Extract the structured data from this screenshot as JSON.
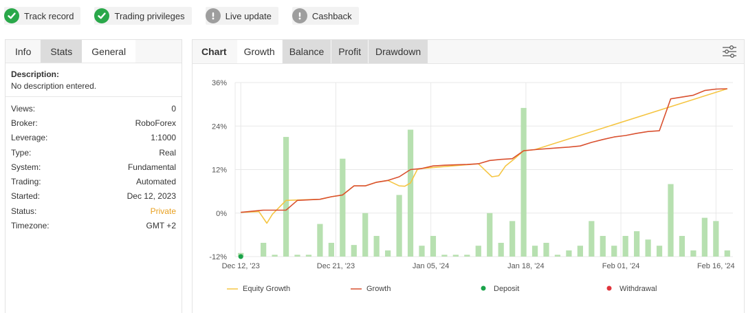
{
  "badges": [
    {
      "label": "Track record",
      "status": "ok"
    },
    {
      "label": "Trading privileges",
      "status": "ok"
    },
    {
      "label": "Live update",
      "status": "warn"
    },
    {
      "label": "Cashback",
      "status": "warn"
    }
  ],
  "left_tabs": [
    "Info",
    "Stats",
    "General"
  ],
  "description": {
    "heading": "Description:",
    "text": "No description entered."
  },
  "info_rows": [
    {
      "label": "Views:",
      "value": "0"
    },
    {
      "label": "Broker:",
      "value": "RoboForex"
    },
    {
      "label": "Leverage:",
      "value": "1:1000"
    },
    {
      "label": "Type:",
      "value": "Real"
    },
    {
      "label": "System:",
      "value": "Fundamental"
    },
    {
      "label": "Trading:",
      "value": "Automated"
    },
    {
      "label": "Started:",
      "value": "Dec 12, 2023"
    },
    {
      "label": "Status:",
      "value": "Private"
    },
    {
      "label": "Timezone:",
      "value": "GMT +2"
    }
  ],
  "right_tabs": {
    "title": "Chart",
    "items": [
      "Growth",
      "Balance",
      "Profit",
      "Drawdown"
    ]
  },
  "colors": {
    "equity": "#f5c542",
    "growth": "#d9502f",
    "deposit": "#1aa34a",
    "withdrawal": "#e0343c",
    "bar": "#b7e0b0",
    "ok": "#2aa84a",
    "private": "#e8a020"
  },
  "chart_data": {
    "type": "bar+line",
    "y_ticks": [
      "36%",
      "24%",
      "12%",
      "0%",
      "-12%"
    ],
    "ylim": [
      -12,
      36
    ],
    "x_ticks": [
      "Dec 12, '23",
      "Dec 21, '23",
      "Jan 05, '24",
      "Jan 18, '24",
      "Feb 01, '24",
      "Feb 16, '24"
    ],
    "bars": [
      -11,
      -12,
      -8.2,
      -11.5,
      21,
      -11.5,
      -11.5,
      -3,
      -8.2,
      15,
      -8.8,
      0,
      -6.3,
      -10.3,
      5,
      23,
      -9,
      -6.3,
      -11.5,
      -11.5,
      -11.5,
      -9,
      0,
      -8.2,
      -2.2,
      29,
      -9,
      -8.2,
      -11.5,
      -10.3,
      -9,
      -2.2,
      -6.3,
      -9,
      -6.3,
      -5,
      -7.3,
      -9,
      8,
      -6.3,
      -10.3,
      -1.3,
      -2.2,
      -10.3
    ],
    "growth": [
      [
        0,
        0.2
      ],
      [
        2,
        0.8
      ],
      [
        4,
        0.8
      ],
      [
        5,
        3.5
      ],
      [
        7,
        3.8
      ],
      [
        8,
        4.5
      ],
      [
        9,
        5
      ],
      [
        10,
        7.5
      ],
      [
        11,
        7.5
      ],
      [
        12,
        8.5
      ],
      [
        13,
        9
      ],
      [
        14,
        10
      ],
      [
        15,
        12
      ],
      [
        16,
        12.3
      ],
      [
        17,
        13
      ],
      [
        18,
        13.2
      ],
      [
        19,
        13.3
      ],
      [
        20,
        13.4
      ],
      [
        21,
        13.6
      ],
      [
        22,
        14.5
      ],
      [
        23,
        14.8
      ],
      [
        24,
        15
      ],
      [
        25,
        17.2
      ],
      [
        26,
        17.5
      ],
      [
        28,
        18
      ],
      [
        29,
        18.2
      ],
      [
        30,
        18.5
      ],
      [
        31,
        19.5
      ],
      [
        32,
        20.3
      ],
      [
        33,
        21
      ],
      [
        34,
        21.4
      ],
      [
        35,
        22
      ],
      [
        36,
        22.5
      ],
      [
        37,
        22.7
      ],
      [
        38,
        31.5
      ],
      [
        39,
        32
      ],
      [
        40,
        32.5
      ],
      [
        41,
        33.8
      ],
      [
        42,
        34.2
      ],
      [
        43,
        34.3
      ]
    ],
    "equity": [
      [
        0,
        0.2
      ],
      [
        1.6,
        0.4
      ],
      [
        2.3,
        -2.8
      ],
      [
        2.8,
        -0.3
      ],
      [
        4,
        3.5
      ],
      [
        7,
        3.8
      ],
      [
        8,
        4.5
      ],
      [
        9,
        5
      ],
      [
        10,
        7.5
      ],
      [
        11,
        7.5
      ],
      [
        12,
        8.5
      ],
      [
        13,
        9
      ],
      [
        14,
        7.5
      ],
      [
        14.5,
        7.4
      ],
      [
        15,
        8.3
      ],
      [
        15.6,
        12
      ],
      [
        16,
        12.3
      ],
      [
        21,
        13.6
      ],
      [
        21.6,
        11.8
      ],
      [
        22.2,
        10
      ],
      [
        22.8,
        10.3
      ],
      [
        23.4,
        13
      ],
      [
        24.2,
        15
      ],
      [
        25,
        17.2
      ],
      [
        26,
        17.5
      ],
      [
        43,
        34.3
      ]
    ],
    "legend": [
      {
        "name": "Equity Growth",
        "kind": "line"
      },
      {
        "name": "Growth",
        "kind": "line"
      },
      {
        "name": "Deposit",
        "kind": "dot"
      },
      {
        "name": "Withdrawal",
        "kind": "dot"
      }
    ],
    "deposit_marker": {
      "x": 0,
      "y": -12
    }
  }
}
